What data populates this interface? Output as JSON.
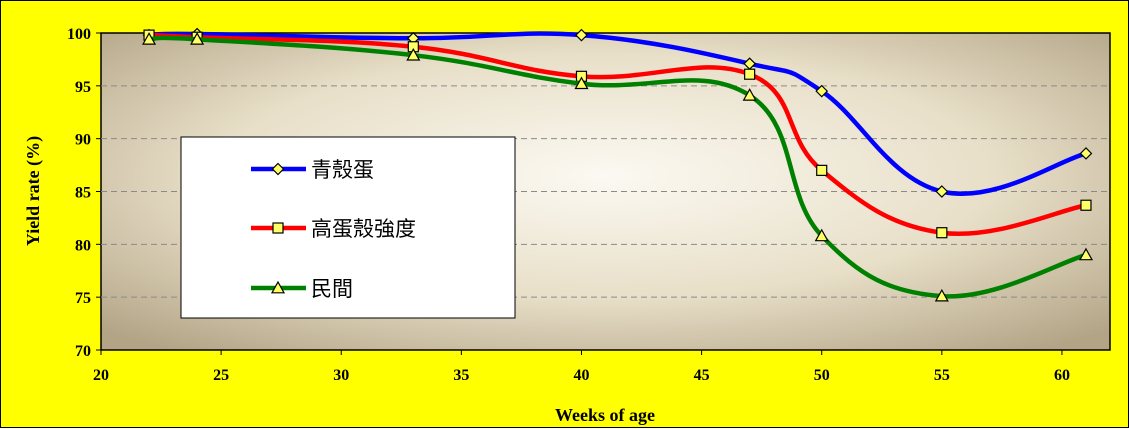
{
  "chart_data": {
    "type": "line",
    "title": "",
    "xlabel": "Weeks of age",
    "ylabel": "Yield rate (%)",
    "xlim": [
      20,
      62
    ],
    "ylim": [
      70,
      100
    ],
    "x_ticks": [
      20,
      25,
      30,
      35,
      40,
      45,
      50,
      55,
      60
    ],
    "y_ticks": [
      70,
      75,
      80,
      85,
      90,
      95,
      100
    ],
    "grid": "horizontal dashed",
    "legend_position": "left-center",
    "series": [
      {
        "name": "青殼蛋",
        "color": "#0000ff",
        "marker": "diamond",
        "marker_color": "#ffff66",
        "x": [
          22,
          24,
          33,
          40,
          47,
          50,
          55,
          61
        ],
        "y": [
          99.8,
          99.9,
          99.5,
          99.8,
          97.1,
          94.5,
          85.0,
          88.6
        ]
      },
      {
        "name": "高蛋殼強度",
        "color": "#ff0000",
        "marker": "square",
        "marker_color": "#ffff66",
        "x": [
          22,
          24,
          33,
          40,
          47,
          50,
          55,
          61
        ],
        "y": [
          99.8,
          99.6,
          98.7,
          95.9,
          96.1,
          87.0,
          81.1,
          83.7
        ]
      },
      {
        "name": "民間",
        "color": "#008000",
        "marker": "triangle",
        "marker_color": "#ffff66",
        "x": [
          22,
          24,
          33,
          40,
          47,
          50,
          55,
          61
        ],
        "y": [
          99.4,
          99.4,
          97.9,
          95.2,
          94.1,
          80.8,
          75.1,
          79.0
        ]
      }
    ]
  }
}
